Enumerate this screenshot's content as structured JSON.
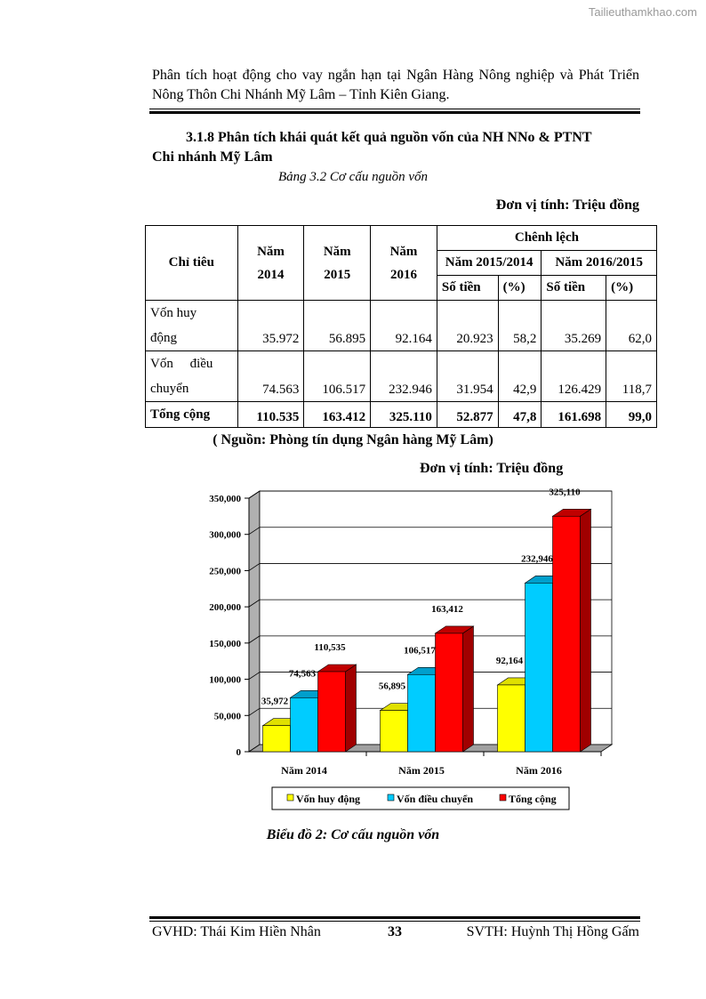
{
  "watermark": "Tailieuthamkhao.com",
  "header": "Phân tích hoạt động cho vay ngắn hạn tại Ngân Hàng Nông nghiệp và Phát Triển Nông Thôn Chi Nhánh Mỹ Lâm – Tỉnh Kiên Giang.",
  "section": {
    "line1": "3.1.8 Phân tích khái quát kết quả nguồn vốn của NH NNo & PTNT",
    "line2": "Chi nhánh Mỹ Lâm"
  },
  "table_caption": "Bảng 3.2 Cơ cấu nguồn vốn",
  "unit": "Đơn vị tính: Triệu đồng",
  "table": {
    "h_chitieu": "Chỉ tiêu",
    "h_2014a": "Năm",
    "h_2014b": "2014",
    "h_2015a": "Năm",
    "h_2015b": "2015",
    "h_2016a": "Năm",
    "h_2016b": "2016",
    "h_chenhlech": "Chênh lệch",
    "h_p1": "Năm 2015/2014",
    "h_p2": "Năm 2016/2015",
    "h_sotien": "Số tiền",
    "h_pct": "(%)",
    "rows": [
      {
        "l1": "Vốn huy",
        "l2": "động",
        "v": [
          "35.972",
          "56.895",
          "92.164",
          "20.923",
          "58,2",
          "35.269",
          "62,0"
        ]
      },
      {
        "l1": "Vốn     điều",
        "l2": "chuyển",
        "v": [
          "74.563",
          "106.517",
          "232.946",
          "31.954",
          "42,9",
          "126.429",
          "118,7"
        ]
      },
      {
        "l1": "Tổng cộng",
        "l2": "",
        "v": [
          "110.535",
          "163.412",
          "325.110",
          "52.877",
          "47,8",
          "161.698",
          "99,0"
        ]
      }
    ]
  },
  "source": "( Nguồn: Phòng tín dụng Ngân hàng Mỹ Lâm)",
  "chart_unit": "Đơn vị tính: Triệu đồng",
  "chart_data": {
    "type": "bar",
    "categories": [
      "Năm 2014",
      "Năm 2015",
      "Năm 2016"
    ],
    "series": [
      {
        "name": "Vốn huy động",
        "values": [
          35972,
          56895,
          92164
        ],
        "labels": [
          "35,972",
          "56,895",
          "92,164"
        ],
        "color": "#FFFF00",
        "side": "#C8C800",
        "top": "#E0E000"
      },
      {
        "name": "Vốn điều chuyển",
        "values": [
          74563,
          106517,
          232946
        ],
        "labels": [
          "74,563",
          "106,517",
          "232,946"
        ],
        "color": "#00CCFF",
        "side": "#0090B8",
        "top": "#009FCC"
      },
      {
        "name": "Tổng cộng",
        "values": [
          110535,
          163412,
          325110
        ],
        "labels": [
          "110,535",
          "163,412",
          "325,110"
        ],
        "color": "#FF0000",
        "side": "#A00000",
        "top": "#C00000"
      }
    ],
    "yticks": [
      "0",
      "50,000",
      "100,000",
      "150,000",
      "200,000",
      "250,000",
      "300,000",
      "350,000"
    ],
    "ylim": [
      0,
      350000
    ],
    "grid": true,
    "legend": "bottom"
  },
  "chart_caption": "Biểu đồ 2: Cơ cấu nguồn vốn",
  "footer": {
    "left": "GVHD: Thái Kim Hiền Nhân",
    "page": "33",
    "right": "SVTH: Huỳnh Thị Hồng Gấm"
  }
}
